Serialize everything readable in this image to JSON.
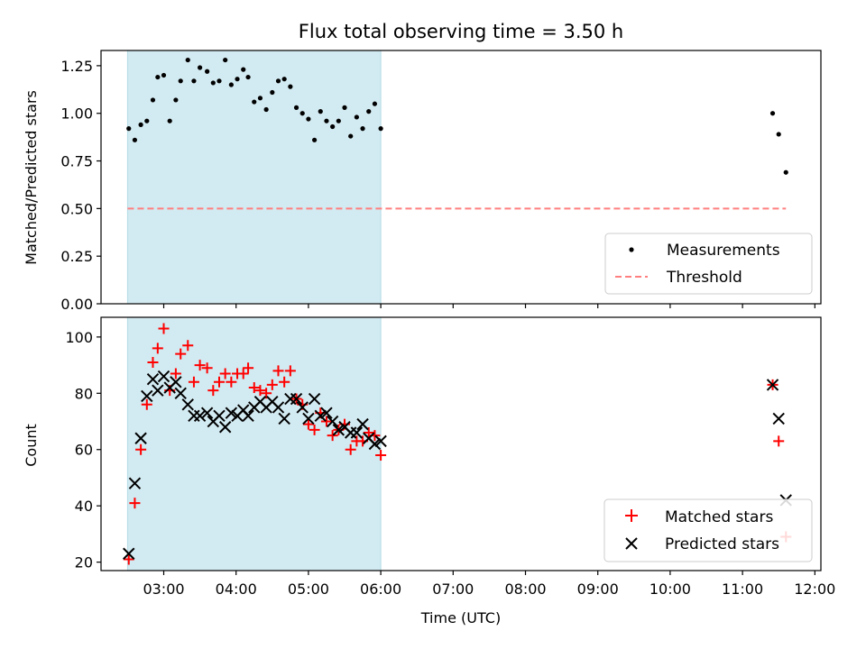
{
  "figure": {
    "title": "Flux total observing time = 3.50 h"
  },
  "chart_data": [
    {
      "type": "scatter",
      "ylabel": "Matched/Predicted stars",
      "xlim": [
        "02:08",
        "12:05"
      ],
      "ylim": [
        0,
        1.33
      ],
      "yticks": [
        "0.00",
        "0.25",
        "0.50",
        "0.75",
        "1.00",
        "1.25"
      ],
      "grid": false,
      "legend": "lower-right",
      "shaded_span": {
        "start": "02:30",
        "end": "06:00",
        "color": "#add8e6"
      },
      "series": [
        {
          "name": "Measurements",
          "kind": "dot",
          "color": "#000000",
          "points": [
            [
              "02:31",
              0.92
            ],
            [
              "02:36",
              0.86
            ],
            [
              "02:41",
              0.94
            ],
            [
              "02:46",
              0.96
            ],
            [
              "02:51",
              1.07
            ],
            [
              "02:55",
              1.19
            ],
            [
              "03:00",
              1.2
            ],
            [
              "03:05",
              0.96
            ],
            [
              "03:10",
              1.07
            ],
            [
              "03:14",
              1.17
            ],
            [
              "03:20",
              1.28
            ],
            [
              "03:25",
              1.17
            ],
            [
              "03:30",
              1.24
            ],
            [
              "03:36",
              1.22
            ],
            [
              "03:41",
              1.16
            ],
            [
              "03:46",
              1.17
            ],
            [
              "03:51",
              1.28
            ],
            [
              "03:56",
              1.15
            ],
            [
              "04:01",
              1.18
            ],
            [
              "04:06",
              1.23
            ],
            [
              "04:10",
              1.19
            ],
            [
              "04:15",
              1.06
            ],
            [
              "04:20",
              1.08
            ],
            [
              "04:25",
              1.02
            ],
            [
              "04:30",
              1.11
            ],
            [
              "04:35",
              1.17
            ],
            [
              "04:40",
              1.18
            ],
            [
              "04:45",
              1.14
            ],
            [
              "04:50",
              1.03
            ],
            [
              "04:55",
              1.0
            ],
            [
              "05:00",
              0.97
            ],
            [
              "05:05",
              0.86
            ],
            [
              "05:10",
              1.01
            ],
            [
              "05:15",
              0.96
            ],
            [
              "05:20",
              0.93
            ],
            [
              "05:25",
              0.96
            ],
            [
              "05:30",
              1.03
            ],
            [
              "05:35",
              0.88
            ],
            [
              "05:40",
              0.98
            ],
            [
              "05:45",
              0.92
            ],
            [
              "05:50",
              1.01
            ],
            [
              "05:55",
              1.05
            ],
            [
              "06:00",
              0.92
            ],
            [
              "11:25",
              1.0
            ],
            [
              "11:30",
              0.89
            ],
            [
              "11:36",
              0.69
            ]
          ]
        },
        {
          "name": "Threshold",
          "kind": "dashed-line",
          "color": "#ff7f7f",
          "points": [
            [
              "02:30",
              0.5
            ],
            [
              "11:36",
              0.5
            ]
          ]
        }
      ]
    },
    {
      "type": "scatter",
      "xlabel": "Time (UTC)",
      "ylabel": "Count",
      "xlim": [
        "02:08",
        "12:05"
      ],
      "ylim": [
        17,
        107
      ],
      "xticks": [
        "03:00",
        "04:00",
        "05:00",
        "06:00",
        "07:00",
        "08:00",
        "09:00",
        "10:00",
        "11:00",
        "12:00"
      ],
      "yticks": [
        "20",
        "40",
        "60",
        "80",
        "100"
      ],
      "grid": false,
      "legend": "lower-right",
      "shaded_span": {
        "start": "02:30",
        "end": "06:00",
        "color": "#add8e6"
      },
      "series": [
        {
          "name": "Matched stars",
          "kind": "plus",
          "color": "#ff0000",
          "points": [
            [
              "02:31",
              21
            ],
            [
              "02:36",
              41
            ],
            [
              "02:41",
              60
            ],
            [
              "02:46",
              76
            ],
            [
              "02:51",
              91
            ],
            [
              "02:55",
              96
            ],
            [
              "03:00",
              103
            ],
            [
              "03:05",
              81
            ],
            [
              "03:10",
              87
            ],
            [
              "03:14",
              94
            ],
            [
              "03:20",
              97
            ],
            [
              "03:25",
              84
            ],
            [
              "03:30",
              90
            ],
            [
              "03:36",
              89
            ],
            [
              "03:41",
              81
            ],
            [
              "03:46",
              84
            ],
            [
              "03:51",
              87
            ],
            [
              "03:56",
              84
            ],
            [
              "04:01",
              87
            ],
            [
              "04:06",
              87
            ],
            [
              "04:10",
              89
            ],
            [
              "04:15",
              82
            ],
            [
              "04:20",
              81
            ],
            [
              "04:25",
              80
            ],
            [
              "04:30",
              83
            ],
            [
              "04:35",
              88
            ],
            [
              "04:40",
              84
            ],
            [
              "04:45",
              88
            ],
            [
              "04:50",
              78
            ],
            [
              "04:55",
              76
            ],
            [
              "05:00",
              69
            ],
            [
              "05:05",
              67
            ],
            [
              "05:10",
              73
            ],
            [
              "05:15",
              70
            ],
            [
              "05:20",
              65
            ],
            [
              "05:25",
              67
            ],
            [
              "05:30",
              69
            ],
            [
              "05:35",
              60
            ],
            [
              "05:40",
              63
            ],
            [
              "05:45",
              63
            ],
            [
              "05:50",
              66
            ],
            [
              "05:55",
              65
            ],
            [
              "06:00",
              58
            ],
            [
              "11:25",
              83
            ],
            [
              "11:30",
              63
            ],
            [
              "11:36",
              29
            ]
          ]
        },
        {
          "name": "Predicted stars",
          "kind": "cross",
          "color": "#000000",
          "points": [
            [
              "02:31",
              23
            ],
            [
              "02:36",
              48
            ],
            [
              "02:41",
              64
            ],
            [
              "02:46",
              79
            ],
            [
              "02:51",
              85
            ],
            [
              "02:55",
              81
            ],
            [
              "03:00",
              86
            ],
            [
              "03:05",
              82
            ],
            [
              "03:10",
              84
            ],
            [
              "03:14",
              80
            ],
            [
              "03:20",
              76
            ],
            [
              "03:25",
              72
            ],
            [
              "03:30",
              72
            ],
            [
              "03:36",
              73
            ],
            [
              "03:41",
              70
            ],
            [
              "03:46",
              72
            ],
            [
              "03:51",
              68
            ],
            [
              "03:56",
              73
            ],
            [
              "04:01",
              72
            ],
            [
              "04:06",
              74
            ],
            [
              "04:10",
              72
            ],
            [
              "04:15",
              75
            ],
            [
              "04:20",
              77
            ],
            [
              "04:25",
              75
            ],
            [
              "04:30",
              77
            ],
            [
              "04:35",
              75
            ],
            [
              "04:40",
              71
            ],
            [
              "04:45",
              78
            ],
            [
              "04:50",
              78
            ],
            [
              "04:55",
              75
            ],
            [
              "05:00",
              71
            ],
            [
              "05:05",
              78
            ],
            [
              "05:10",
              72
            ],
            [
              "05:15",
              73
            ],
            [
              "05:20",
              70
            ],
            [
              "05:25",
              67
            ],
            [
              "05:30",
              68
            ],
            [
              "05:35",
              66
            ],
            [
              "05:40",
              66
            ],
            [
              "05:45",
              69
            ],
            [
              "05:50",
              64
            ],
            [
              "05:55",
              62
            ],
            [
              "06:00",
              63
            ],
            [
              "11:25",
              83
            ],
            [
              "11:30",
              71
            ],
            [
              "11:36",
              42
            ]
          ]
        }
      ]
    }
  ]
}
